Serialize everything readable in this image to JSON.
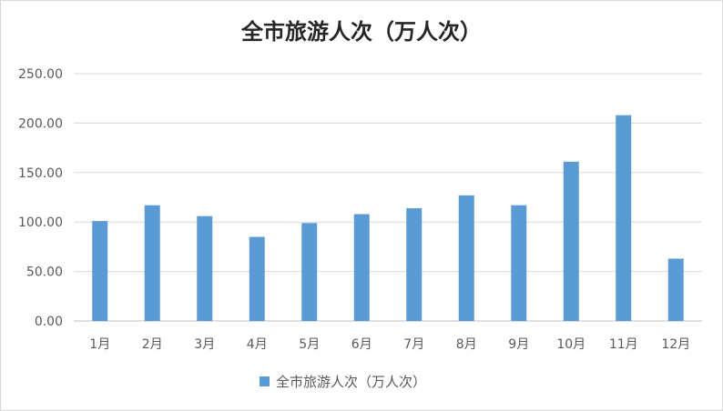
{
  "chart_data": {
    "type": "bar",
    "title": "全市旅游人次（万人次）",
    "categories": [
      "1月",
      "2月",
      "3月",
      "4月",
      "5月",
      "6月",
      "7月",
      "8月",
      "9月",
      "10月",
      "11月",
      "12月"
    ],
    "series": [
      {
        "name": "全市旅游人次（万人次）",
        "values": [
          101,
          117,
          106,
          85,
          99,
          108,
          114,
          127,
          117,
          161,
          208,
          63
        ],
        "color": "#5b9bd5"
      }
    ],
    "y_ticks": [
      "0.00",
      "50.00",
      "100.00",
      "150.00",
      "200.00",
      "250.00"
    ],
    "ylim": [
      0,
      250
    ],
    "grid": true,
    "legend_position": "bottom",
    "colors": {
      "gridline": "#d9d9d9",
      "axis": "#bfbfbf",
      "text": "#595959",
      "title": "#262626"
    }
  }
}
